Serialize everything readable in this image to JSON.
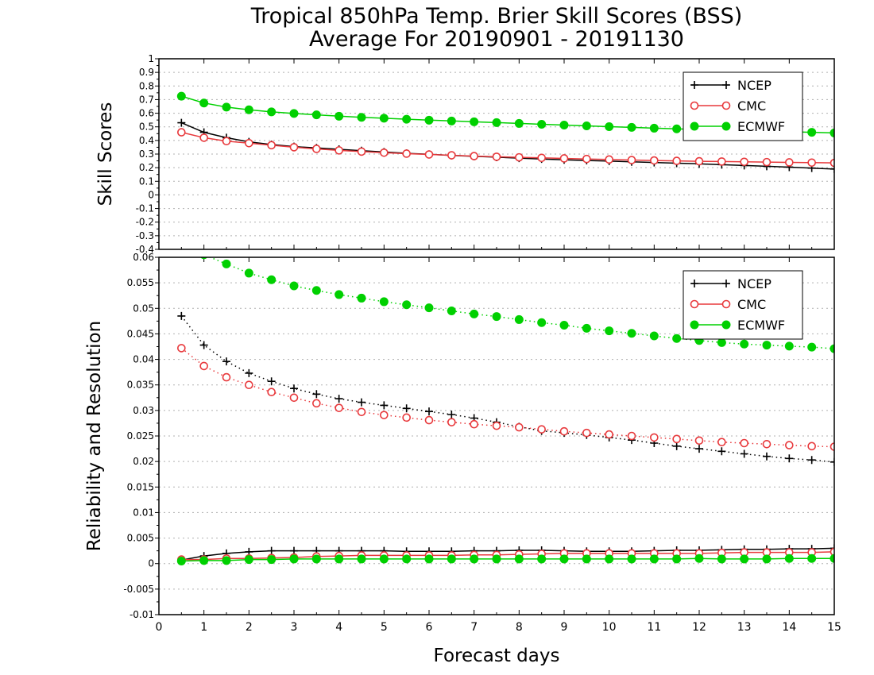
{
  "title_line1": "Tropical 850hPa Temp. Brier Skill Scores (BSS)",
  "title_line2": "Average For 20190901 - 20191130",
  "xlabel": "Forecast days",
  "colors": {
    "NCEP": "#000000",
    "CMC": "#e8393c",
    "ECMWF": "#00d000"
  },
  "chart_data": [
    {
      "type": "line",
      "panel": "top",
      "ylabel": "Skill Scores",
      "xlim": [
        0,
        15
      ],
      "ylim": [
        -0.4,
        1
      ],
      "x_ticks": [
        0,
        1,
        2,
        3,
        4,
        5,
        6,
        7,
        8,
        9,
        10,
        11,
        12,
        13,
        14,
        15
      ],
      "y_ticks": [
        "-0.4",
        "-0.3",
        "-0.2",
        "-0.1",
        "0",
        "0.1",
        "0.2",
        "0.3",
        "0.4",
        "0.5",
        "0.6",
        "0.7",
        "0.8",
        "0.9",
        "1"
      ],
      "grid": true,
      "legend": "top-right",
      "x": [
        0.5,
        1,
        1.5,
        2,
        2.5,
        3,
        3.5,
        4,
        4.5,
        5,
        5.5,
        6,
        6.5,
        7,
        7.5,
        8,
        8.5,
        9,
        9.5,
        10,
        10.5,
        11,
        11.5,
        12,
        12.5,
        13,
        13.5,
        14,
        14.5,
        15
      ],
      "series": [
        {
          "name": "NCEP",
          "marker": "plus",
          "line": "solid",
          "values": [
            0.53,
            0.46,
            0.42,
            0.39,
            0.37,
            0.355,
            0.345,
            0.335,
            0.325,
            0.315,
            0.305,
            0.298,
            0.29,
            0.283,
            0.277,
            0.27,
            0.264,
            0.258,
            0.253,
            0.248,
            0.243,
            0.238,
            0.233,
            0.228,
            0.222,
            0.216,
            0.21,
            0.204,
            0.197,
            0.19
          ]
        },
        {
          "name": "CMC",
          "marker": "circle-open",
          "line": "solid",
          "values": [
            0.46,
            0.42,
            0.395,
            0.38,
            0.365,
            0.35,
            0.338,
            0.327,
            0.318,
            0.31,
            0.303,
            0.297,
            0.291,
            0.285,
            0.28,
            0.276,
            0.272,
            0.268,
            0.264,
            0.26,
            0.256,
            0.253,
            0.25,
            0.247,
            0.245,
            0.243,
            0.241,
            0.239,
            0.237,
            0.235
          ]
        },
        {
          "name": "ECMWF",
          "marker": "circle-filled",
          "line": "solid",
          "values": [
            0.725,
            0.675,
            0.645,
            0.625,
            0.61,
            0.598,
            0.588,
            0.578,
            0.57,
            0.563,
            0.556,
            0.549,
            0.543,
            0.537,
            0.531,
            0.525,
            0.519,
            0.513,
            0.507,
            0.501,
            0.496,
            0.49,
            0.485,
            0.48,
            0.476,
            0.472,
            0.468,
            0.464,
            0.46,
            0.455
          ]
        }
      ]
    },
    {
      "type": "line",
      "panel": "bottom",
      "ylabel": "Reliability and Resolution",
      "xlim": [
        0,
        15
      ],
      "ylim": [
        -0.01,
        0.06
      ],
      "x_ticks": [
        0,
        1,
        2,
        3,
        4,
        5,
        6,
        7,
        8,
        9,
        10,
        11,
        12,
        13,
        14,
        15
      ],
      "y_ticks": [
        "-0.01",
        "-0.005",
        "0",
        "0.005",
        "0.01",
        "0.015",
        "0.02",
        "0.025",
        "0.03",
        "0.035",
        "0.04",
        "0.045",
        "0.05",
        "0.055",
        "0.06"
      ],
      "grid": true,
      "legend": "top-right",
      "x": [
        0.5,
        1,
        1.5,
        2,
        2.5,
        3,
        3.5,
        4,
        4.5,
        5,
        5.5,
        6,
        6.5,
        7,
        7.5,
        8,
        8.5,
        9,
        9.5,
        10,
        10.5,
        11,
        11.5,
        12,
        12.5,
        13,
        13.5,
        14,
        14.5,
        15
      ],
      "series": [
        {
          "name": "NCEP",
          "group": "resolution",
          "marker": "plus",
          "line": "dotted",
          "values": [
            0.0485,
            0.0428,
            0.0396,
            0.0373,
            0.0357,
            0.0343,
            0.0332,
            0.0323,
            0.0316,
            0.031,
            0.0304,
            0.0298,
            0.0292,
            0.0285,
            0.0277,
            0.0268,
            0.026,
            0.0256,
            0.0252,
            0.0247,
            0.0242,
            0.0236,
            0.023,
            0.0225,
            0.022,
            0.0215,
            0.021,
            0.0206,
            0.0203,
            0.0199
          ]
        },
        {
          "name": "CMC",
          "group": "resolution",
          "marker": "circle-open",
          "line": "dotted",
          "values": [
            0.0422,
            0.0387,
            0.0365,
            0.035,
            0.0336,
            0.0325,
            0.0314,
            0.0305,
            0.0297,
            0.0291,
            0.0286,
            0.0281,
            0.0277,
            0.0273,
            0.027,
            0.0267,
            0.0263,
            0.0259,
            0.0256,
            0.0253,
            0.025,
            0.0247,
            0.0244,
            0.0241,
            0.0238,
            0.0236,
            0.0234,
            0.0232,
            0.023,
            0.0229
          ]
        },
        {
          "name": "ECMWF",
          "group": "resolution",
          "marker": "circle-filled",
          "line": "dotted",
          "values": [
            0.0625,
            0.0605,
            0.0587,
            0.0569,
            0.0556,
            0.0544,
            0.0535,
            0.0527,
            0.052,
            0.0513,
            0.0507,
            0.0501,
            0.0495,
            0.0489,
            0.0484,
            0.0478,
            0.0472,
            0.0467,
            0.0461,
            0.0456,
            0.0451,
            0.0446,
            0.0441,
            0.0437,
            0.0433,
            0.043,
            0.0428,
            0.0426,
            0.0424,
            0.0421
          ]
        },
        {
          "name": "NCEP",
          "group": "reliability",
          "marker": "plus",
          "line": "solid",
          "values": [
            0.0007,
            0.0015,
            0.002,
            0.0023,
            0.0025,
            0.0025,
            0.0025,
            0.0025,
            0.0025,
            0.0025,
            0.0024,
            0.0024,
            0.0024,
            0.0025,
            0.0025,
            0.0026,
            0.0026,
            0.0025,
            0.0024,
            0.0024,
            0.0024,
            0.0025,
            0.0026,
            0.0026,
            0.0027,
            0.0028,
            0.0028,
            0.0029,
            0.0029,
            0.003
          ]
        },
        {
          "name": "CMC",
          "group": "reliability",
          "marker": "circle-open",
          "line": "solid",
          "values": [
            0.0008,
            0.0008,
            0.001,
            0.001,
            0.0011,
            0.0012,
            0.0014,
            0.0015,
            0.0016,
            0.0016,
            0.0016,
            0.0016,
            0.0016,
            0.0017,
            0.0017,
            0.0018,
            0.0019,
            0.002,
            0.002,
            0.002,
            0.002,
            0.002,
            0.002,
            0.002,
            0.0021,
            0.0022,
            0.0022,
            0.0022,
            0.0022,
            0.0023
          ]
        },
        {
          "name": "ECMWF",
          "group": "reliability",
          "marker": "circle-filled",
          "line": "solid",
          "values": [
            0.0005,
            0.0006,
            0.0006,
            0.0008,
            0.0008,
            0.0009,
            0.0009,
            0.0009,
            0.0009,
            0.0009,
            0.0009,
            0.0009,
            0.0009,
            0.0009,
            0.0009,
            0.0009,
            0.0009,
            0.0009,
            0.0009,
            0.0009,
            0.0009,
            0.0009,
            0.0009,
            0.001,
            0.0009,
            0.0009,
            0.0009,
            0.001,
            0.001,
            0.001
          ]
        }
      ]
    }
  ]
}
